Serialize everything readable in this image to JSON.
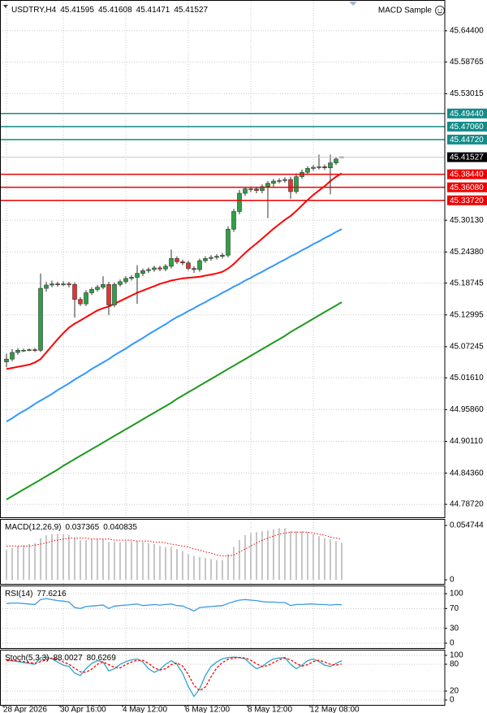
{
  "chart_data": [
    {
      "type": "candlestick",
      "title": "USDTRY,H4",
      "header_values": [
        45.41595,
        45.41608,
        45.41471,
        45.41527
      ],
      "indicator": "MACD Sample",
      "categories": [
        "28 Apr 2026",
        null,
        null,
        null,
        null,
        null,
        null,
        null,
        null,
        null,
        "30 Apr 16:00",
        null,
        null,
        null,
        null,
        null,
        null,
        null,
        null,
        null,
        null,
        "4 May 12:00",
        null,
        null,
        null,
        null,
        null,
        null,
        null,
        null,
        null,
        null,
        "6 May 12:00",
        null,
        null,
        null,
        null,
        null,
        null,
        null,
        null,
        null,
        null,
        "8 May 12:00",
        null,
        null,
        null,
        null,
        null,
        null,
        null,
        null,
        null,
        null,
        "12 May 08:00",
        null,
        null,
        null,
        null,
        null
      ],
      "open": [
        45.045,
        45.05,
        45.062,
        45.066,
        45.066,
        45.067,
        45.066,
        45.178,
        45.184,
        45.186,
        45.185,
        45.186,
        45.185,
        45.158,
        45.15,
        45.17,
        45.176,
        45.18,
        45.185,
        45.148,
        45.185,
        45.19,
        45.196,
        45.198,
        45.205,
        45.21,
        45.212,
        45.215,
        45.213,
        45.218,
        45.232,
        45.226,
        45.224,
        45.214,
        45.212,
        45.228,
        45.232,
        45.234,
        45.236,
        45.238,
        45.285,
        45.317,
        45.35,
        45.358,
        45.358,
        45.355,
        45.362,
        45.368,
        45.372,
        45.373,
        45.375,
        45.353,
        45.38,
        45.388,
        45.395,
        45.397,
        45.398,
        45.396,
        45.405,
        45.41595
      ],
      "high": [
        45.06,
        45.068,
        45.07,
        45.069,
        45.069,
        45.07,
        45.205,
        45.19,
        45.192,
        45.19,
        45.191,
        45.19,
        45.189,
        45.162,
        45.175,
        45.18,
        45.184,
        45.2,
        45.19,
        45.189,
        45.194,
        45.2,
        45.202,
        45.22,
        45.214,
        45.216,
        45.219,
        45.219,
        45.222,
        45.248,
        45.236,
        45.23,
        45.228,
        45.218,
        45.232,
        45.236,
        45.238,
        45.24,
        45.242,
        45.29,
        45.322,
        45.356,
        45.362,
        45.362,
        45.362,
        45.366,
        45.372,
        45.376,
        45.377,
        45.379,
        45.38,
        45.386,
        45.393,
        45.399,
        45.401,
        45.42,
        45.402,
        45.42,
        45.416,
        45.41608
      ],
      "low": [
        45.035,
        45.046,
        45.058,
        45.063,
        45.064,
        45.063,
        45.063,
        45.172,
        45.18,
        45.181,
        45.182,
        45.18,
        45.125,
        45.146,
        45.146,
        45.166,
        45.172,
        45.176,
        45.13,
        45.144,
        45.181,
        45.186,
        45.192,
        45.15,
        45.2,
        45.206,
        45.208,
        45.209,
        45.209,
        45.214,
        45.222,
        45.22,
        45.21,
        45.206,
        45.208,
        45.224,
        45.228,
        45.23,
        45.232,
        45.234,
        45.28,
        45.312,
        45.345,
        45.352,
        45.35,
        45.35,
        45.305,
        45.362,
        45.368,
        45.369,
        45.34,
        45.349,
        45.376,
        45.384,
        45.391,
        45.393,
        45.392,
        45.348,
        45.401,
        45.41471
      ],
      "close": [
        45.05,
        45.062,
        45.066,
        45.066,
        45.067,
        45.066,
        45.178,
        45.184,
        45.186,
        45.185,
        45.186,
        45.185,
        45.158,
        45.15,
        45.17,
        45.176,
        45.18,
        45.185,
        45.148,
        45.185,
        45.19,
        45.196,
        45.198,
        45.205,
        45.21,
        45.212,
        45.215,
        45.213,
        45.218,
        45.232,
        45.226,
        45.224,
        45.214,
        45.212,
        45.228,
        45.232,
        45.234,
        45.236,
        45.238,
        45.285,
        45.317,
        45.35,
        45.358,
        45.358,
        45.355,
        45.362,
        45.368,
        45.372,
        45.373,
        45.375,
        45.353,
        45.38,
        45.388,
        45.395,
        45.397,
        45.398,
        45.396,
        45.405,
        45.412,
        45.41527
      ],
      "up_color": "#2ea043",
      "down_color": "#e8322d",
      "series": [
        {
          "color": "#ff0000",
          "values": [
            45.032,
            45.034,
            45.036,
            45.038,
            45.04,
            45.044,
            45.05,
            45.062,
            45.074,
            45.086,
            45.097,
            45.107,
            45.114,
            45.12,
            45.126,
            45.132,
            45.138,
            45.142,
            45.145,
            45.15,
            45.155,
            45.16,
            45.165,
            45.17,
            45.174,
            45.178,
            45.182,
            45.186,
            45.189,
            45.192,
            45.194,
            45.196,
            45.197,
            45.198,
            45.199,
            45.201,
            45.203,
            45.205,
            45.208,
            45.214,
            45.222,
            45.232,
            45.242,
            45.251,
            45.259,
            45.268,
            45.277,
            45.286,
            45.294,
            45.302,
            45.309,
            45.318,
            45.328,
            45.338,
            45.347,
            45.355,
            45.363,
            45.372,
            45.38,
            45.386
          ]
        },
        {
          "color": "#3399ff",
          "values": [
            44.937,
            44.943,
            44.95,
            44.956,
            44.962,
            44.969,
            44.975,
            44.981,
            44.987,
            44.994,
            45.0,
            45.006,
            45.013,
            45.019,
            45.025,
            45.032,
            45.038,
            45.044,
            45.05,
            45.057,
            45.063,
            45.069,
            45.076,
            45.082,
            45.088,
            45.095,
            45.101,
            45.107,
            45.113,
            45.12,
            45.126,
            45.131,
            45.137,
            45.142,
            45.148,
            45.153,
            45.159,
            45.164,
            45.17,
            45.175,
            45.181,
            45.186,
            45.192,
            45.197,
            45.203,
            45.208,
            45.214,
            45.219,
            45.225,
            45.23,
            45.236,
            45.241,
            45.247,
            45.252,
            45.258,
            45.263,
            45.269,
            45.274,
            45.28,
            45.285
          ]
        },
        {
          "color": "#1e9a1e",
          "values": [
            44.796,
            44.802,
            44.808,
            44.814,
            44.82,
            44.826,
            44.832,
            44.838,
            44.844,
            44.85,
            44.857,
            44.863,
            44.869,
            44.875,
            44.881,
            44.887,
            44.893,
            44.899,
            44.905,
            44.911,
            44.917,
            44.923,
            44.929,
            44.935,
            44.941,
            44.947,
            44.953,
            44.959,
            44.965,
            44.971,
            44.978,
            44.984,
            44.99,
            44.996,
            45.002,
            45.008,
            45.014,
            45.02,
            45.026,
            45.032,
            45.038,
            45.044,
            45.05,
            45.056,
            45.062,
            45.068,
            45.074,
            45.08,
            45.086,
            45.092,
            45.099,
            45.105,
            45.111,
            45.117,
            45.123,
            45.129,
            45.135,
            45.141,
            45.147,
            45.153
          ]
        }
      ],
      "ylim": [
        44.7638,
        45.6982
      ],
      "yticks": [
        {
          "value": 45.644,
          "label": "45.64400"
        },
        45.58765,
        45.53015,
        {
          "value": 45.3013,
          "label": "45.30130"
        },
        {
          "value": 45.2438,
          "label": "45.24380"
        },
        45.18745,
        45.12995,
        45.07245,
        {
          "value": 45.0161,
          "label": "45.01610"
        },
        {
          "value": 44.9586,
          "label": "44.95860"
        },
        {
          "value": 44.9011,
          "label": "44.90110"
        },
        {
          "value": 44.8436,
          "label": "44.84360"
        },
        {
          "value": 44.7872,
          "label": "44.78720"
        }
      ],
      "levels": [
        {
          "value": 45.4944,
          "label": "45.49440",
          "color": "#138b87"
        },
        {
          "value": 45.4706,
          "label": "45.47060",
          "color": "#138b87"
        },
        {
          "value": 45.4472,
          "label": "45.44720",
          "color": "#138b87"
        },
        {
          "value": 45.3844,
          "label": "45.38440",
          "color": "#ee0000"
        },
        {
          "value": 45.3608,
          "label": "45.36080",
          "color": "#ee0000"
        },
        {
          "value": 45.3372,
          "label": "45.33720",
          "color": "#ee0000"
        }
      ],
      "last_price": 45.41527,
      "grid": true
    },
    {
      "type": "macd",
      "title": "MACD(12,26,9)",
      "header_values": [
        0.037365,
        0.040835
      ],
      "series": [
        {
          "color": "#b4b4b4",
          "style": "histogram",
          "values": [
            0.03,
            0.032,
            0.034,
            0.035,
            0.036,
            0.037,
            0.042,
            0.045,
            0.046,
            0.046,
            0.046,
            0.045,
            0.042,
            0.04,
            0.04,
            0.041,
            0.041,
            0.041,
            0.038,
            0.038,
            0.038,
            0.039,
            0.039,
            0.039,
            0.038,
            0.037,
            0.036,
            0.034,
            0.033,
            0.033,
            0.031,
            0.029,
            0.026,
            0.024,
            0.023,
            0.022,
            0.021,
            0.02,
            0.02,
            0.026,
            0.033,
            0.04,
            0.045,
            0.047,
            0.048,
            0.049,
            0.05,
            0.051,
            0.052,
            0.052,
            0.049,
            0.049,
            0.049,
            0.048,
            0.046,
            0.044,
            0.042,
            0.041,
            0.039,
            0.037365
          ]
        },
        {
          "color": "#ff0000",
          "style": "dotted",
          "values": [
            0.034,
            0.034,
            0.034,
            0.034,
            0.034,
            0.035,
            0.036,
            0.037,
            0.039,
            0.04,
            0.041,
            0.042,
            0.042,
            0.042,
            0.042,
            0.041,
            0.041,
            0.041,
            0.041,
            0.04,
            0.04,
            0.04,
            0.04,
            0.039,
            0.039,
            0.039,
            0.038,
            0.038,
            0.037,
            0.036,
            0.035,
            0.034,
            0.033,
            0.031,
            0.03,
            0.028,
            0.027,
            0.025,
            0.024,
            0.024,
            0.025,
            0.028,
            0.031,
            0.034,
            0.037,
            0.04,
            0.042,
            0.044,
            0.046,
            0.047,
            0.048,
            0.048,
            0.048,
            0.048,
            0.047,
            0.046,
            0.045,
            0.043,
            0.042,
            0.040835
          ]
        }
      ],
      "ylim": [
        -0.0041,
        0.0605
      ],
      "yticks": [
        0.054744,
        0
      ],
      "grid": false
    },
    {
      "type": "line",
      "title": "RSI(14)",
      "header_values": [
        77.6216
      ],
      "series": [
        {
          "color": "#3d9be0",
          "values": [
            80,
            81,
            81,
            80,
            79,
            78,
            88,
            90,
            88,
            86,
            85,
            83,
            72,
            70,
            74,
            75,
            76,
            77,
            70,
            75,
            76,
            77,
            78,
            79,
            76,
            77,
            78,
            77,
            78,
            79,
            76,
            75,
            70,
            65,
            72,
            73,
            74,
            75,
            76,
            80,
            84,
            87,
            88,
            87,
            86,
            84,
            83,
            83,
            82,
            82,
            76,
            78,
            78,
            79,
            79,
            78,
            78,
            77,
            78,
            77.6216
          ]
        }
      ],
      "ylim": [
        -9.8,
        114.8
      ],
      "yticks": [
        100,
        70,
        30,
        0
      ],
      "grid": true
    },
    {
      "type": "line",
      "title": "Stoch(5,3,3)",
      "header_values": [
        88.0027,
        80.6269
      ],
      "series": [
        {
          "color": "#2fa6c8",
          "values": [
            90,
            88,
            86,
            84,
            82,
            80,
            95,
            96,
            92,
            85,
            78,
            75,
            60,
            55,
            70,
            82,
            88,
            85,
            65,
            70,
            80,
            86,
            90,
            92,
            85,
            70,
            62,
            68,
            80,
            88,
            80,
            60,
            30,
            8,
            25,
            55,
            75,
            85,
            92,
            95,
            96,
            95,
            92,
            80,
            70,
            75,
            85,
            92,
            94,
            95,
            80,
            70,
            78,
            88,
            92,
            86,
            78,
            75,
            82,
            88.0027
          ]
        },
        {
          "color": "#ff0000",
          "style": "dashed",
          "values": [
            88,
            88,
            87,
            86,
            84,
            82,
            86,
            90,
            94,
            91,
            85,
            80,
            71,
            63,
            62,
            69,
            80,
            85,
            79,
            73,
            72,
            79,
            85,
            89,
            89,
            82,
            72,
            67,
            70,
            79,
            83,
            76,
            57,
            33,
            21,
            29,
            52,
            72,
            84,
            91,
            94,
            95,
            94,
            89,
            81,
            75,
            77,
            84,
            90,
            94,
            90,
            82,
            76,
            79,
            86,
            89,
            85,
            80,
            78,
            80.6269
          ]
        }
      ],
      "ylim": [
        -10.9,
        110.9
      ],
      "yticks": [
        100,
        80,
        20,
        0
      ],
      "grid": true
    }
  ]
}
